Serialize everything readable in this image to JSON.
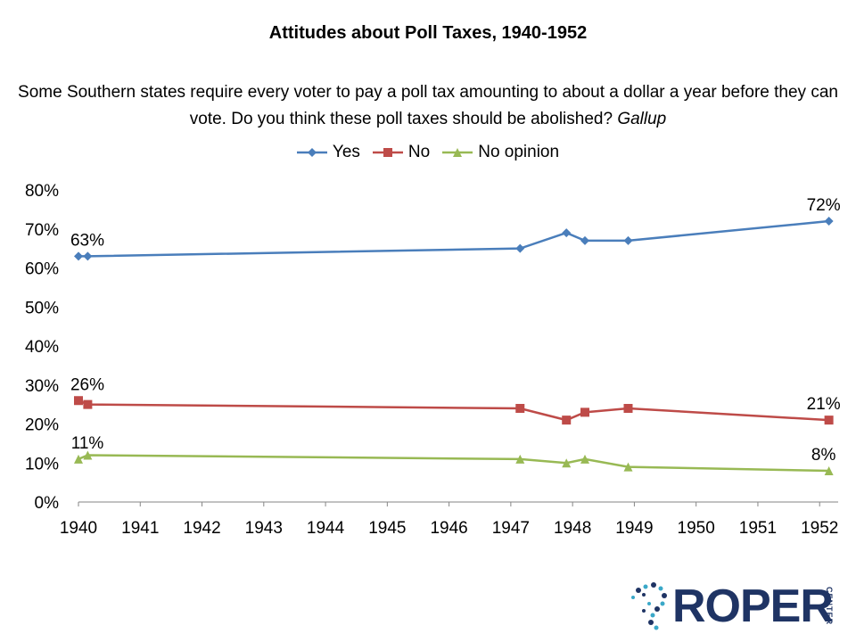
{
  "chart_data": {
    "type": "line",
    "title": "Attitudes about Poll Taxes, 1940-1952",
    "subtitle": "Some Southern states require every voter to pay a poll tax amounting to about a dollar a year before they can vote. Do you think these poll taxes should be abolished?",
    "source": "Gallup",
    "x_ticks": [
      "1940",
      "1941",
      "1942",
      "1943",
      "1944",
      "1945",
      "1946",
      "1947",
      "1948",
      "1949",
      "1950",
      "1951",
      "1952"
    ],
    "y_ticks": [
      "0%",
      "10%",
      "20%",
      "30%",
      "40%",
      "50%",
      "60%",
      "70%",
      "80%"
    ],
    "ylim": [
      0,
      80
    ],
    "xlim": [
      1940,
      1952.3
    ],
    "grid": false,
    "legend_position": "top",
    "series": [
      {
        "name": "Yes",
        "color": "#4a7ebb",
        "marker": "diamond",
        "points": [
          [
            1940.0,
            63
          ],
          [
            1940.15,
            63
          ],
          [
            1947.15,
            65
          ],
          [
            1947.9,
            69
          ],
          [
            1948.2,
            67
          ],
          [
            1948.9,
            67
          ],
          [
            1952.15,
            72
          ]
        ],
        "labels": [
          {
            "index": 0,
            "text": "63%"
          },
          {
            "index": 6,
            "text": "72%"
          }
        ]
      },
      {
        "name": "No",
        "color": "#be4b48",
        "marker": "square",
        "points": [
          [
            1940.0,
            26
          ],
          [
            1940.15,
            25
          ],
          [
            1947.15,
            24
          ],
          [
            1947.9,
            21
          ],
          [
            1948.2,
            23
          ],
          [
            1948.9,
            24
          ],
          [
            1952.15,
            21
          ]
        ],
        "labels": [
          {
            "index": 0,
            "text": "26%"
          },
          {
            "index": 6,
            "text": "21%"
          }
        ]
      },
      {
        "name": "No opinion",
        "color": "#98b954",
        "marker": "triangle",
        "points": [
          [
            1940.0,
            11
          ],
          [
            1940.15,
            12
          ],
          [
            1947.15,
            11
          ],
          [
            1947.9,
            10
          ],
          [
            1948.2,
            11
          ],
          [
            1948.9,
            9
          ],
          [
            1952.15,
            8
          ]
        ],
        "labels": [
          {
            "index": 0,
            "text": "11%"
          },
          {
            "index": 6,
            "text": "8%"
          }
        ]
      }
    ]
  },
  "logo": {
    "text": "ROPER",
    "center": "CENTER"
  }
}
